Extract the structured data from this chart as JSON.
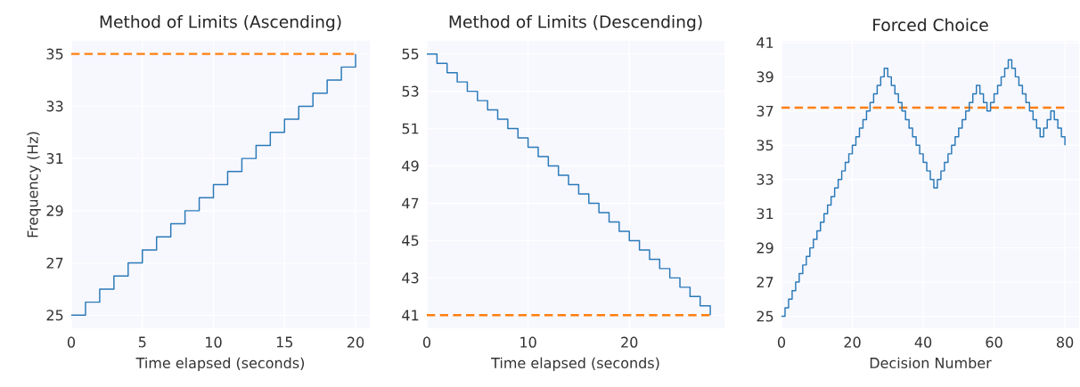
{
  "chart_data": [
    {
      "type": "step",
      "title": "Method of Limits (Ascending)",
      "xlabel": "Time elapsed (seconds)",
      "ylabel": "Frequency (Hz)",
      "color": "#2a7ab8",
      "x": [
        0,
        1,
        2,
        3,
        4,
        5,
        6,
        7,
        8,
        9,
        10,
        11,
        12,
        13,
        14,
        15,
        16,
        17,
        18,
        19,
        20
      ],
      "values": [
        25,
        25.5,
        26,
        26.5,
        27,
        27.5,
        28,
        28.5,
        29,
        29.5,
        30,
        30.5,
        31,
        31.5,
        32,
        32.5,
        33,
        33.5,
        34,
        34.5,
        35
      ],
      "xlim": [
        0,
        21
      ],
      "ylim": [
        24.5,
        35.5
      ],
      "xticks": [
        0,
        5,
        10,
        15,
        20
      ],
      "yticks": [
        25,
        27,
        29,
        31,
        33,
        35
      ],
      "grid": true,
      "ref_lines": [
        {
          "axis": "y",
          "value": 35,
          "color": "#ff7f0e",
          "line_style": "dashed"
        }
      ]
    },
    {
      "type": "step",
      "title": "Method of Limits (Descending)",
      "xlabel": "Time elapsed (seconds)",
      "color": "#2a7ab8",
      "x": [
        0,
        1,
        2,
        3,
        4,
        5,
        6,
        7,
        8,
        9,
        10,
        11,
        12,
        13,
        14,
        15,
        16,
        17,
        18,
        19,
        20,
        21,
        22,
        23,
        24,
        25,
        26,
        27,
        28
      ],
      "values": [
        55,
        54.5,
        54,
        53.5,
        53,
        52.5,
        52,
        51.5,
        51,
        50.5,
        50,
        49.5,
        49,
        48.5,
        48,
        47.5,
        47,
        46.5,
        46,
        45.5,
        45,
        44.5,
        44,
        43.5,
        43,
        42.5,
        42,
        41.5,
        41
      ],
      "xlim": [
        0,
        29.4
      ],
      "ylim": [
        40.3,
        55.7
      ],
      "xticks": [
        0,
        10,
        20
      ],
      "yticks": [
        41,
        43,
        45,
        47,
        49,
        51,
        53,
        55
      ],
      "grid": true,
      "ref_lines": [
        {
          "axis": "y",
          "value": 41,
          "color": "#ff7f0e",
          "line_style": "dashed"
        }
      ]
    },
    {
      "type": "step",
      "title": "Forced Choice",
      "xlabel": "Decision Number",
      "color": "#2a7ab8",
      "x": [
        0,
        1,
        2,
        3,
        4,
        5,
        6,
        7,
        8,
        9,
        10,
        11,
        12,
        13,
        14,
        15,
        16,
        17,
        18,
        19,
        20,
        21,
        22,
        23,
        24,
        25,
        26,
        27,
        28,
        29,
        30,
        31,
        32,
        33,
        34,
        35,
        36,
        37,
        38,
        39,
        40,
        41,
        42,
        43,
        44,
        45,
        46,
        47,
        48,
        49,
        50,
        51,
        52,
        53,
        54,
        55,
        56,
        57,
        58,
        59,
        60,
        61,
        62,
        63,
        64,
        65,
        66,
        67,
        68,
        69,
        70,
        71,
        72,
        73,
        74,
        75,
        76,
        77,
        78,
        79,
        80
      ],
      "values": [
        25,
        25.5,
        26,
        26.5,
        27,
        27.5,
        28,
        28.5,
        29,
        29.5,
        30,
        30.5,
        31,
        31.5,
        32,
        32.5,
        33,
        33.5,
        34,
        34.5,
        35,
        35.5,
        36,
        36.5,
        37,
        37.5,
        38,
        38.5,
        39,
        39.5,
        39,
        38.5,
        38,
        37.5,
        37,
        36.5,
        36,
        35.5,
        35,
        34.5,
        34,
        33.5,
        33,
        32.5,
        33,
        33.5,
        34,
        34.5,
        35,
        35.5,
        36,
        36.5,
        37,
        37.5,
        38,
        38.5,
        38,
        37.5,
        37,
        37.5,
        38,
        38.5,
        39,
        39.5,
        40,
        39.5,
        39,
        38.5,
        38,
        37.5,
        37,
        36.5,
        36,
        35.5,
        36,
        36.5,
        37,
        36.5,
        36,
        35.5,
        35
      ],
      "xlim": [
        0,
        84
      ],
      "ylim": [
        24.3,
        41.1
      ],
      "xticks": [
        0,
        20,
        40,
        60,
        80
      ],
      "yticks": [
        25,
        27,
        29,
        31,
        33,
        35,
        37,
        39,
        41
      ],
      "grid": true,
      "ref_lines": [
        {
          "axis": "y",
          "value": 37.2,
          "color": "#ff7f0e",
          "line_style": "dashed"
        }
      ]
    }
  ]
}
